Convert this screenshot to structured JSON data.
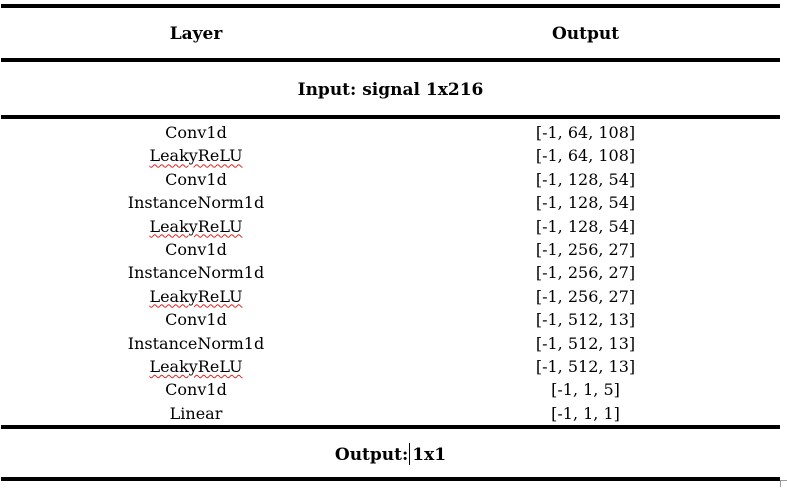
{
  "table": {
    "headers": {
      "layer": "Layer",
      "output": "Output"
    },
    "input_label": "Input: signal 1x216",
    "rows": [
      {
        "layer": "Conv1d",
        "output": "[-1, 64, 108]",
        "spell_flag": false
      },
      {
        "layer": "LeakyReLU",
        "output": "[-1, 64, 108]",
        "spell_flag": true
      },
      {
        "layer": "Conv1d",
        "output": "[-1, 128, 54]",
        "spell_flag": false
      },
      {
        "layer": "InstanceNorm1d",
        "output": "[-1, 128, 54]",
        "spell_flag": false
      },
      {
        "layer": "LeakyReLU",
        "output": "[-1, 128, 54]",
        "spell_flag": true
      },
      {
        "layer": "Conv1d",
        "output": "[-1, 256, 27]",
        "spell_flag": false
      },
      {
        "layer": "InstanceNorm1d",
        "output": "[-1, 256, 27]",
        "spell_flag": false
      },
      {
        "layer": "LeakyReLU",
        "output": "[-1, 256, 27]",
        "spell_flag": true
      },
      {
        "layer": "Conv1d",
        "output": "[-1, 512, 13]",
        "spell_flag": false
      },
      {
        "layer": "InstanceNorm1d",
        "output": "[-1, 512, 13]",
        "spell_flag": false
      },
      {
        "layer": "LeakyReLU",
        "output": "[-1, 512, 13]",
        "spell_flag": true
      },
      {
        "layer": "Conv1d",
        "output": "[-1, 1, 5]",
        "spell_flag": false
      },
      {
        "layer": "Linear",
        "output": "[-1, 1, 1]",
        "spell_flag": false
      }
    ],
    "output_label_before_cursor": "Output:",
    "output_label_after_cursor": "1x1"
  },
  "colors": {
    "rule": "#000000",
    "spellcheck_underline": "#dd2222",
    "text": "#000000",
    "background": "#ffffff"
  }
}
